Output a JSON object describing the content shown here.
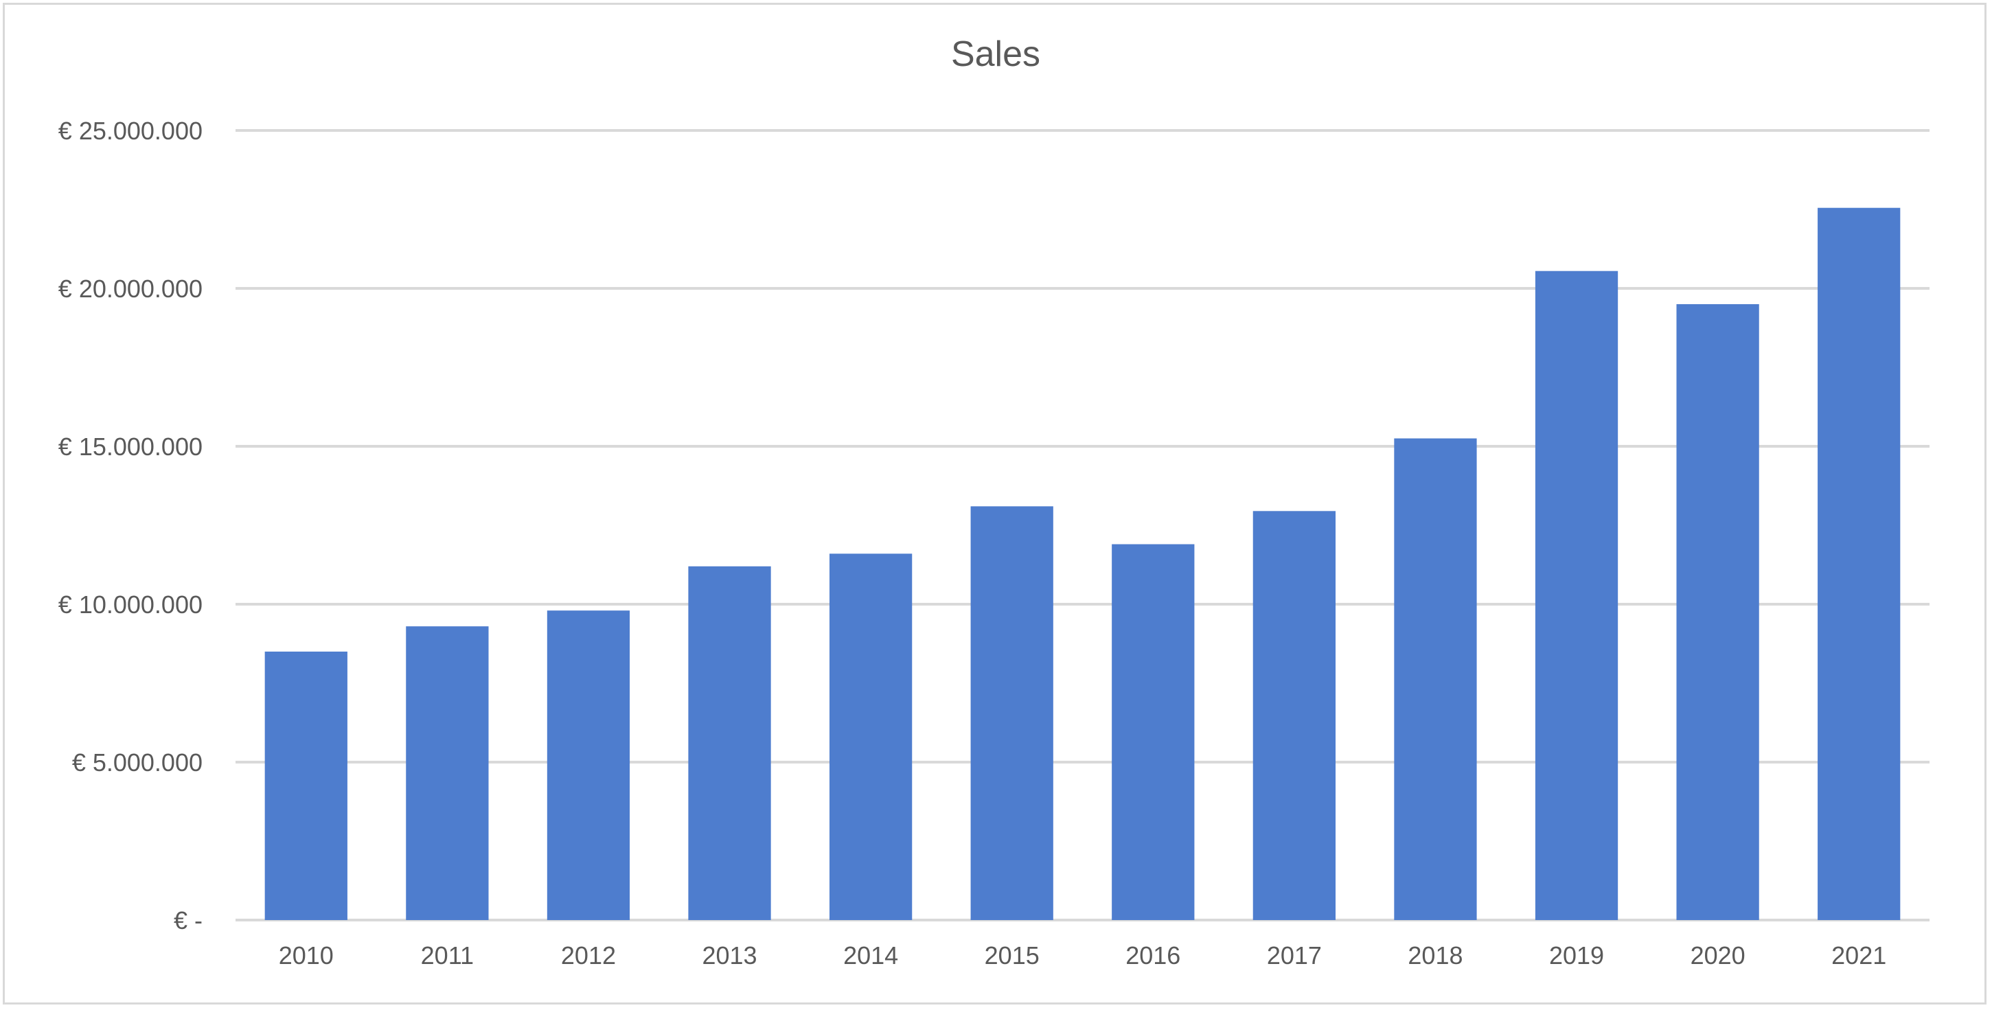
{
  "chart_data": {
    "type": "bar",
    "title": "Sales",
    "xlabel": "",
    "ylabel": "",
    "categories": [
      "2010",
      "2011",
      "2012",
      "2013",
      "2014",
      "2015",
      "2016",
      "2017",
      "2018",
      "2019",
      "2020",
      "2021"
    ],
    "values": [
      8500000,
      9300000,
      9800000,
      11200000,
      11600000,
      13100000,
      11900000,
      12950000,
      15250000,
      20550000,
      19500000,
      22550000
    ],
    "ylim": [
      0,
      25000000
    ],
    "yticks": [
      0,
      5000000,
      10000000,
      15000000,
      20000000,
      25000000
    ],
    "ytick_labels": [
      "€ -",
      "€ 5.000.000",
      "€ 10.000.000",
      "€ 15.000.000",
      "€ 20.000.000",
      "€ 25.000.000"
    ],
    "grid": true,
    "legend": "none",
    "bar_color": "#4e7dce",
    "grid_color": "#d9d9d9",
    "text_color": "#595959"
  }
}
